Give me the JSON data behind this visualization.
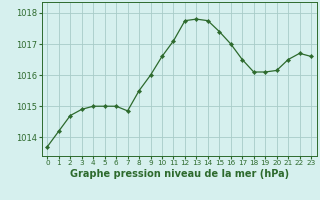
{
  "x": [
    0,
    1,
    2,
    3,
    4,
    5,
    6,
    7,
    8,
    9,
    10,
    11,
    12,
    13,
    14,
    15,
    16,
    17,
    18,
    19,
    20,
    21,
    22,
    23
  ],
  "y": [
    1013.7,
    1014.2,
    1014.7,
    1014.9,
    1015.0,
    1015.0,
    1015.0,
    1014.85,
    1015.5,
    1016.0,
    1016.6,
    1017.1,
    1017.75,
    1017.8,
    1017.75,
    1017.4,
    1017.0,
    1016.5,
    1016.1,
    1016.1,
    1016.15,
    1016.5,
    1016.7,
    1016.6
  ],
  "line_color": "#2d6a2d",
  "marker": "D",
  "marker_size": 2.2,
  "bg_color": "#d6f0ee",
  "grid_color": "#a8ccc8",
  "ylabel_ticks": [
    1014,
    1015,
    1016,
    1017,
    1018
  ],
  "ylim": [
    1013.4,
    1018.35
  ],
  "xlim": [
    -0.5,
    23.5
  ],
  "xlabel": "Graphe pression niveau de la mer (hPa)",
  "xlabel_color": "#2d6a2d",
  "tick_color": "#2d6a2d",
  "ylabel_fontsize": 6.0,
  "xlabel_fontsize": 7.0,
  "xtick_fontsize": 5.2
}
